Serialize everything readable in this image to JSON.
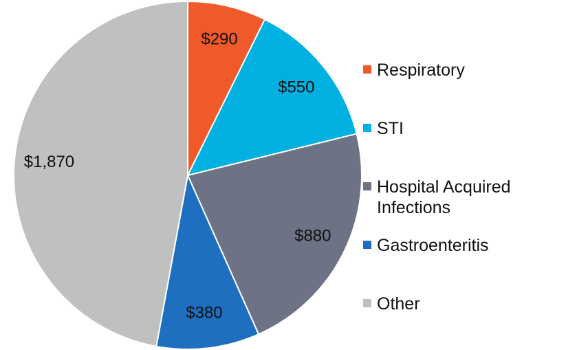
{
  "chart_data": {
    "type": "pie",
    "categories": [
      "Respiratory",
      "STI",
      "Hospital Acquired Infections",
      "Gastroenteritis",
      "Other"
    ],
    "values": [
      290,
      550,
      880,
      380,
      1870
    ],
    "value_labels": [
      "$290",
      "$550",
      "$880",
      "$380",
      "$1,870"
    ],
    "colors": [
      "#f05a2b",
      "#00b0e0",
      "#6d7385",
      "#1e6fc0",
      "#c0c0c0"
    ],
    "legend": "right"
  }
}
